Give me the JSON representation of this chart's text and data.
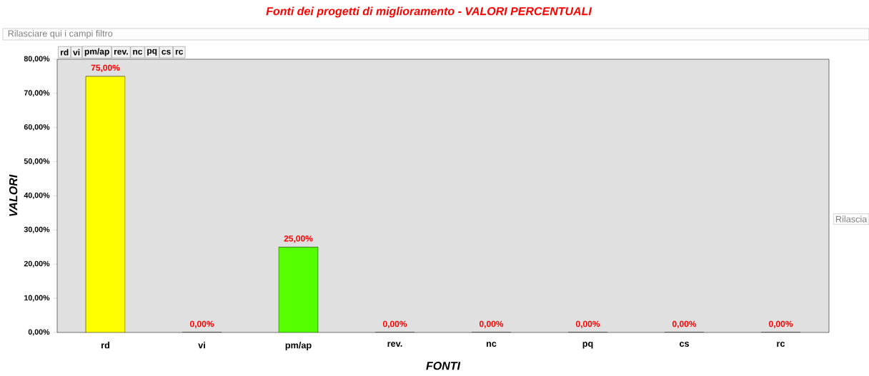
{
  "chart_data": {
    "type": "bar",
    "title": "Fonti dei progetti di miglioramento - VALORI PERCENTUALI",
    "xlabel": "FONTI",
    "ylabel": "VALORI",
    "categories": [
      "rd",
      "vi",
      "pm/ap",
      "rev.",
      "nc",
      "pq",
      "cs",
      "rc"
    ],
    "values": [
      75,
      0,
      25,
      0,
      0,
      0,
      0,
      0
    ],
    "colors": [
      "#ffff00",
      "#3366ff",
      "#55ff00",
      "#ff6600",
      "#9999ff",
      "#ff00ff",
      "#00ccff",
      "#993366"
    ],
    "value_labels": [
      "75,00%",
      "0,00%",
      "25,00%",
      "0,00%",
      "0,00%",
      "0,00%",
      "0,00%",
      "0,00%"
    ],
    "ylim": [
      0,
      80
    ],
    "yticks": [
      {
        "value": 0,
        "label": "0,00%"
      },
      {
        "value": 10,
        "label": "10,00%"
      },
      {
        "value": 20,
        "label": "20,00%"
      },
      {
        "value": 30,
        "label": "30,00%"
      },
      {
        "value": 40,
        "label": "40,00%"
      },
      {
        "value": 50,
        "label": "50,00%"
      },
      {
        "value": 60,
        "label": "60,00%"
      },
      {
        "value": 70,
        "label": "70,00%"
      },
      {
        "value": 80,
        "label": "80,00%"
      }
    ],
    "grid": false,
    "annotations": [
      "Rilasciare qui i campi filtro",
      "rd",
      "vi",
      "pm/ap",
      "rev.",
      "nc",
      "pq",
      "cs",
      "rc",
      "Rilascia"
    ]
  }
}
